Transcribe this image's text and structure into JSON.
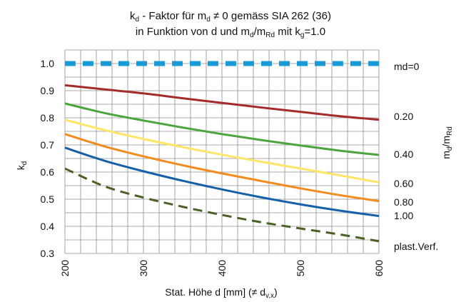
{
  "chart_data": {
    "type": "line",
    "title": {
      "line1": {
        "k": "k",
        "k_sub": "d",
        "t1": " - Faktor für m",
        "m_sub": "d",
        "t2": " ≠ 0 gemäss SIA 262 (36)"
      },
      "line2": {
        "t1": "in Funktion von d und m",
        "s1": "d",
        "t2": "/m",
        "s2": "Rd",
        "t3": " mit k",
        "s3": "g",
        "t4": "=1.0"
      }
    },
    "xlabel": {
      "text": "Stat. Höhe d [mm] (≠ d",
      "sub": "v,x",
      "close": ")"
    },
    "ylabel": {
      "text": "k",
      "sub": "d"
    },
    "right_axis_label": {
      "m": "m",
      "sub1": "d",
      "slash": "/m",
      "sub2": "Rd"
    },
    "xlim": [
      200,
      600
    ],
    "ylim": [
      0.3,
      1.05
    ],
    "x_ticks": [
      "200",
      "300",
      "400",
      "500",
      "600"
    ],
    "y_ticks": [
      "0.3",
      "0.4",
      "0.5",
      "0.6",
      "0.7",
      "0.8",
      "0.9",
      "1.0"
    ],
    "grid": true,
    "x": [
      200,
      250,
      300,
      350,
      400,
      450,
      500,
      550,
      600
    ],
    "series": [
      {
        "name": "md=0",
        "color": "#1a9bd7",
        "style": "dashed-thick",
        "values": [
          1.0,
          1.0,
          1.0,
          1.0,
          1.0,
          1.0,
          1.0,
          1.0,
          1.0
        ]
      },
      {
        "name": "0.20",
        "color": "#a52a2a",
        "style": "solid",
        "values": [
          0.92,
          0.905,
          0.89,
          0.872,
          0.855,
          0.838,
          0.822,
          0.806,
          0.793
        ]
      },
      {
        "name": "0.40",
        "color": "#4aa63c",
        "style": "solid",
        "values": [
          0.853,
          0.818,
          0.79,
          0.764,
          0.74,
          0.718,
          0.698,
          0.679,
          0.663
        ]
      },
      {
        "name": "0.60",
        "color": "#ffe566",
        "style": "solid",
        "values": [
          0.793,
          0.755,
          0.722,
          0.692,
          0.664,
          0.638,
          0.613,
          0.588,
          0.562
        ]
      },
      {
        "name": "0.80",
        "color": "#f28c1e",
        "style": "solid",
        "values": [
          0.74,
          0.695,
          0.658,
          0.625,
          0.595,
          0.567,
          0.54,
          0.515,
          0.493
        ]
      },
      {
        "name": "1.00",
        "color": "#1560a8",
        "style": "solid",
        "values": [
          0.69,
          0.642,
          0.603,
          0.568,
          0.536,
          0.507,
          0.481,
          0.458,
          0.438
        ]
      },
      {
        "name": "plast.Verf.",
        "color": "#4a6125",
        "style": "dashed",
        "values": [
          0.613,
          0.548,
          0.506,
          0.472,
          0.442,
          0.415,
          0.392,
          0.37,
          0.345
        ]
      }
    ],
    "series_labels": [
      "md=0",
      "0.20",
      "0.40",
      "0.60",
      "0.80",
      "1.00",
      "plast.Verf."
    ]
  }
}
